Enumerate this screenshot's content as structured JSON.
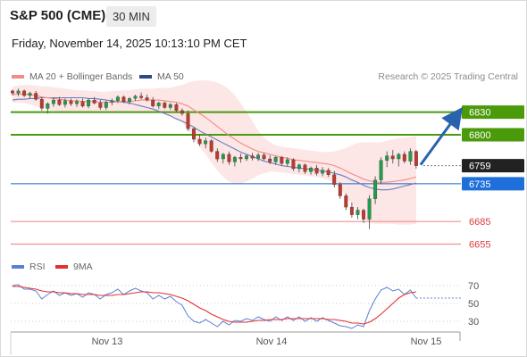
{
  "header": {
    "title": "S&P 500 (CME)",
    "interval": "30 MIN",
    "datetime": "Friday, November 14, 2025 10:13:10 PM CET"
  },
  "legend": {
    "ma20_label": "MA 20 + Bollinger Bands",
    "ma50_label": "MA 50",
    "credit": "Research © 2025 Trading Central"
  },
  "rsi_legend": {
    "rsi_label": "RSI",
    "ma_label": "9MA"
  },
  "colors": {
    "resistance": "#4a9a0a",
    "support": "#f39090",
    "pivot": "#1565c0",
    "last_price": "#222222",
    "arrow": "#2a62ad",
    "ma20": "#f28b82",
    "ma50": "#6b7bbf",
    "bollinger_fill": "#fde2e2",
    "candle_up": "#1e9e4a",
    "candle_down": "#c0392b",
    "rsi": "#5a7fd6",
    "rsi_ma": "#e33030"
  },
  "chart_data": [
    {
      "type": "candlestick",
      "x_ticks": [
        "Nov 13",
        "Nov 14",
        "Nov 15"
      ],
      "ylim": [
        6645,
        6865
      ],
      "levels": [
        {
          "label": "6830",
          "value": 6830,
          "kind": "resistance",
          "tag": "filled"
        },
        {
          "label": "6800",
          "value": 6800,
          "kind": "resistance",
          "tag": "filled"
        },
        {
          "label": "6759",
          "value": 6759,
          "kind": "last",
          "tag": "filled"
        },
        {
          "label": "6735",
          "value": 6735,
          "kind": "pivot",
          "tag": "filled"
        },
        {
          "label": "6685",
          "value": 6685,
          "kind": "support",
          "tag": "text"
        },
        {
          "label": "6655",
          "value": 6655,
          "kind": "support",
          "tag": "text"
        }
      ],
      "candles": [
        [
          6858,
          6860,
          6852,
          6855
        ],
        [
          6855,
          6861,
          6851,
          6858
        ],
        [
          6858,
          6860,
          6850,
          6852
        ],
        [
          6852,
          6857,
          6848,
          6855
        ],
        [
          6855,
          6858,
          6845,
          6847
        ],
        [
          6847,
          6850,
          6832,
          6835
        ],
        [
          6835,
          6843,
          6828,
          6841
        ],
        [
          6841,
          6849,
          6837,
          6846
        ],
        [
          6846,
          6850,
          6838,
          6840
        ],
        [
          6840,
          6848,
          6836,
          6845
        ],
        [
          6845,
          6848,
          6838,
          6841
        ],
        [
          6841,
          6847,
          6837,
          6844
        ],
        [
          6844,
          6848,
          6836,
          6838
        ],
        [
          6838,
          6848,
          6835,
          6846
        ],
        [
          6846,
          6850,
          6840,
          6842
        ],
        [
          6842,
          6846,
          6833,
          6836
        ],
        [
          6836,
          6845,
          6833,
          6843
        ],
        [
          6843,
          6848,
          6839,
          6845
        ],
        [
          6845,
          6852,
          6842,
          6850
        ],
        [
          6850,
          6852,
          6842,
          6844
        ],
        [
          6844,
          6850,
          6840,
          6848
        ],
        [
          6848,
          6853,
          6845,
          6851
        ],
        [
          6851,
          6856,
          6847,
          6849
        ],
        [
          6849,
          6853,
          6844,
          6846
        ],
        [
          6846,
          6850,
          6836,
          6838
        ],
        [
          6838,
          6844,
          6834,
          6842
        ],
        [
          6842,
          6844,
          6834,
          6836
        ],
        [
          6836,
          6842,
          6833,
          6840
        ],
        [
          6840,
          6842,
          6830,
          6832
        ],
        [
          6832,
          6835,
          6825,
          6828
        ],
        [
          6828,
          6832,
          6805,
          6808
        ],
        [
          6808,
          6810,
          6790,
          6794
        ],
        [
          6794,
          6800,
          6785,
          6788
        ],
        [
          6788,
          6796,
          6782,
          6792
        ],
        [
          6792,
          6794,
          6776,
          6778
        ],
        [
          6778,
          6782,
          6764,
          6768
        ],
        [
          6768,
          6776,
          6762,
          6774
        ],
        [
          6774,
          6778,
          6760,
          6764
        ],
        [
          6764,
          6772,
          6758,
          6770
        ],
        [
          6770,
          6775,
          6763,
          6768
        ],
        [
          6768,
          6774,
          6765,
          6772
        ],
        [
          6772,
          6776,
          6766,
          6769
        ],
        [
          6769,
          6776,
          6765,
          6773
        ],
        [
          6773,
          6776,
          6766,
          6768
        ],
        [
          6768,
          6773,
          6761,
          6764
        ],
        [
          6764,
          6772,
          6760,
          6770
        ],
        [
          6770,
          6772,
          6759,
          6762
        ],
        [
          6762,
          6770,
          6758,
          6767
        ],
        [
          6767,
          6769,
          6752,
          6755
        ],
        [
          6755,
          6762,
          6750,
          6760
        ],
        [
          6760,
          6762,
          6748,
          6751
        ],
        [
          6751,
          6758,
          6747,
          6756
        ],
        [
          6756,
          6760,
          6746,
          6749
        ],
        [
          6749,
          6757,
          6745,
          6753
        ],
        [
          6753,
          6756,
          6744,
          6747
        ],
        [
          6747,
          6752,
          6730,
          6734
        ],
        [
          6734,
          6737,
          6715,
          6719
        ],
        [
          6719,
          6722,
          6700,
          6704
        ],
        [
          6704,
          6710,
          6690,
          6694
        ],
        [
          6694,
          6704,
          6688,
          6700
        ],
        [
          6700,
          6702,
          6683,
          6688
        ],
        [
          6688,
          6720,
          6675,
          6715
        ],
        [
          6715,
          6745,
          6708,
          6740
        ],
        [
          6740,
          6770,
          6735,
          6766
        ],
        [
          6766,
          6778,
          6757,
          6772
        ],
        [
          6772,
          6780,
          6762,
          6768
        ],
        [
          6768,
          6776,
          6758,
          6774
        ],
        [
          6774,
          6778,
          6762,
          6765
        ],
        [
          6765,
          6782,
          6760,
          6778
        ],
        [
          6778,
          6780,
          6755,
          6759
        ]
      ],
      "ma20": [
        6853,
        6854,
        6854,
        6853,
        6852,
        6850,
        6849,
        6848,
        6847,
        6846,
        6845,
        6845,
        6844,
        6844,
        6844,
        6843,
        6843,
        6843,
        6844,
        6844,
        6844,
        6845,
        6846,
        6846,
        6846,
        6846,
        6845,
        6844,
        6843,
        6841,
        6838,
        6833,
        6828,
        6823,
        6817,
        6811,
        6805,
        6799,
        6794,
        6789,
        6785,
        6781,
        6778,
        6776,
        6774,
        6772,
        6770,
        6769,
        6767,
        6766,
        6765,
        6764,
        6763,
        6762,
        6761,
        6759,
        6756,
        6752,
        6748,
        6745,
        6741,
        6739,
        6737,
        6737,
        6737,
        6738,
        6739,
        6740,
        6742,
        6744
      ],
      "ma50": [
        6846,
        6847,
        6847,
        6848,
        6848,
        6849,
        6849,
        6849,
        6849,
        6849,
        6849,
        6849,
        6849,
        6848,
        6848,
        6847,
        6846,
        6845,
        6844,
        6843,
        6842,
        6840,
        6838,
        6836,
        6834,
        6831,
        6828,
        6825,
        6821,
        6818,
        6814,
        6810,
        6805,
        6801,
        6797,
        6793,
        6789,
        6785,
        6781,
        6777,
        6774,
        6771,
        6768,
        6765,
        6763,
        6761,
        6759,
        6758,
        6757,
        6756,
        6755,
        6754,
        6753,
        6752,
        6751,
        6749,
        6747,
        6744,
        6740,
        6737,
        6733,
        6730,
        6728,
        6727,
        6727,
        6728,
        6730,
        6732,
        6734,
        6736
      ],
      "bb_upper": [
        6864,
        6865,
        6866,
        6866,
        6865,
        6864,
        6864,
        6863,
        6862,
        6861,
        6860,
        6859,
        6859,
        6858,
        6858,
        6857,
        6857,
        6858,
        6858,
        6859,
        6859,
        6860,
        6861,
        6861,
        6861,
        6862,
        6862,
        6862,
        6864,
        6866,
        6869,
        6871,
        6872,
        6872,
        6871,
        6869,
        6866,
        6860,
        6852,
        6842,
        6830,
        6818,
        6805,
        6796,
        6790,
        6786,
        6784,
        6783,
        6782,
        6781,
        6780,
        6779,
        6778,
        6777,
        6777,
        6778,
        6780,
        6782,
        6786,
        6789,
        6790,
        6790,
        6790,
        6790,
        6792,
        6794,
        6795,
        6796,
        6797,
        6798
      ],
      "bb_lower": [
        6842,
        6843,
        6842,
        6840,
        6838,
        6835,
        6833,
        6832,
        6831,
        6830,
        6829,
        6829,
        6829,
        6829,
        6829,
        6829,
        6829,
        6829,
        6829,
        6829,
        6829,
        6829,
        6830,
        6830,
        6830,
        6829,
        6828,
        6826,
        6822,
        6816,
        6807,
        6795,
        6784,
        6774,
        6763,
        6753,
        6744,
        6738,
        6735,
        6735,
        6738,
        6742,
        6746,
        6749,
        6751,
        6751,
        6750,
        6749,
        6748,
        6747,
        6746,
        6745,
        6744,
        6742,
        6740,
        6735,
        6728,
        6718,
        6707,
        6697,
        6689,
        6684,
        6682,
        6682,
        6682,
        6682,
        6681,
        6681,
        6681,
        6682
      ],
      "projection": {
        "from": 6759,
        "to": 6830
      }
    },
    {
      "type": "line",
      "name": "RSI",
      "y_ticks": [
        70,
        50,
        30
      ],
      "ylim": [
        20,
        80
      ],
      "series": [
        {
          "name": "RSI",
          "values": [
            70,
            71,
            66,
            66,
            64,
            55,
            60,
            64,
            59,
            62,
            59,
            61,
            57,
            62,
            60,
            55,
            60,
            62,
            66,
            60,
            64,
            67,
            64,
            62,
            55,
            59,
            55,
            58,
            52,
            48,
            36,
            30,
            28,
            32,
            28,
            24,
            30,
            26,
            31,
            30,
            33,
            31,
            35,
            32,
            30,
            35,
            31,
            35,
            31,
            35,
            30,
            34,
            30,
            34,
            31,
            28,
            25,
            24,
            22,
            26,
            24,
            42,
            55,
            65,
            68,
            64,
            66,
            60,
            65,
            56
          ]
        },
        {
          "name": "9MA",
          "values": [
            69,
            69,
            68,
            67,
            66,
            64,
            63,
            63,
            62,
            62,
            61,
            61,
            60,
            60,
            60,
            59,
            59,
            59,
            60,
            60,
            61,
            62,
            63,
            63,
            62,
            62,
            61,
            60,
            58,
            56,
            53,
            49,
            45,
            42,
            38,
            35,
            32,
            30,
            29,
            29,
            29,
            30,
            31,
            31,
            32,
            32,
            32,
            33,
            33,
            33,
            33,
            33,
            33,
            33,
            32,
            32,
            31,
            30,
            28,
            28,
            27,
            29,
            33,
            38,
            44,
            50,
            56,
            60,
            62,
            63
          ]
        }
      ]
    }
  ]
}
